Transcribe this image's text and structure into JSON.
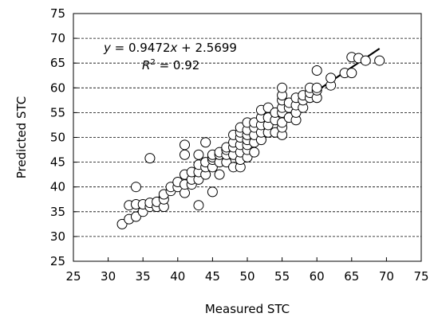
{
  "chart_data": {
    "type": "scatter",
    "title": "",
    "xlabel": "Measured STC",
    "ylabel": "Predicted STC",
    "xlim": [
      25,
      75
    ],
    "ylim": [
      25,
      75
    ],
    "x_ticks": [
      "25",
      "30",
      "35",
      "40",
      "45",
      "50",
      "55",
      "60",
      "65",
      "70",
      "75"
    ],
    "y_ticks": [
      "25",
      "30",
      "35",
      "40",
      "45",
      "50",
      "55",
      "60",
      "65",
      "70",
      "75"
    ],
    "grid": "horizontal-dashed",
    "legend": "none",
    "series": [
      {
        "marker": "open-circle",
        "points": [
          [
            32,
            32.5
          ],
          [
            33,
            33.5
          ],
          [
            33,
            36.3
          ],
          [
            34,
            34
          ],
          [
            34,
            36.5
          ],
          [
            34,
            40
          ],
          [
            35,
            35
          ],
          [
            35,
            36.5
          ],
          [
            36,
            36
          ],
          [
            36,
            36.8
          ],
          [
            36,
            45.8
          ],
          [
            37,
            36
          ],
          [
            37,
            37
          ],
          [
            38,
            36
          ],
          [
            38,
            37.5
          ],
          [
            38,
            38.5
          ],
          [
            39,
            39.2
          ],
          [
            39,
            40
          ],
          [
            40,
            40
          ],
          [
            40,
            41
          ],
          [
            41,
            38.8
          ],
          [
            41,
            40.5
          ],
          [
            41,
            42.5
          ],
          [
            41,
            46.5
          ],
          [
            41,
            48.5
          ],
          [
            42,
            40.5
          ],
          [
            42,
            41.5
          ],
          [
            42,
            43
          ],
          [
            43,
            36.3
          ],
          [
            43,
            41.5
          ],
          [
            43,
            43
          ],
          [
            43,
            44.5
          ],
          [
            43,
            46.5
          ],
          [
            44,
            42.5
          ],
          [
            44,
            44
          ],
          [
            44,
            45
          ],
          [
            44,
            49
          ],
          [
            45,
            39
          ],
          [
            45,
            44
          ],
          [
            45,
            45.5
          ],
          [
            45,
            46
          ],
          [
            45,
            46.5
          ],
          [
            46,
            42.5
          ],
          [
            46,
            45
          ],
          [
            46,
            46.5
          ],
          [
            46,
            47
          ],
          [
            47,
            45
          ],
          [
            47,
            46.5
          ],
          [
            47,
            47.5
          ],
          [
            47,
            48
          ],
          [
            48,
            44
          ],
          [
            48,
            46.5
          ],
          [
            48,
            48
          ],
          [
            48,
            49
          ],
          [
            48,
            50.5
          ],
          [
            49,
            44
          ],
          [
            49,
            45.5
          ],
          [
            49,
            47
          ],
          [
            49,
            48.5
          ],
          [
            49,
            50
          ],
          [
            49,
            51
          ],
          [
            49,
            52
          ],
          [
            50,
            46
          ],
          [
            50,
            47.5
          ],
          [
            50,
            48.5
          ],
          [
            50,
            49.5
          ],
          [
            50,
            50.5
          ],
          [
            50,
            51.5
          ],
          [
            50,
            53
          ],
          [
            51,
            47
          ],
          [
            51,
            49
          ],
          [
            51,
            50.5
          ],
          [
            51,
            52
          ],
          [
            51,
            53
          ],
          [
            52,
            49.5
          ],
          [
            52,
            51
          ],
          [
            52,
            52.5
          ],
          [
            52,
            54
          ],
          [
            52,
            55.5
          ],
          [
            53,
            51
          ],
          [
            53,
            52.5
          ],
          [
            53,
            54
          ],
          [
            53,
            56
          ],
          [
            54,
            51
          ],
          [
            54,
            53.5
          ],
          [
            54,
            55
          ],
          [
            55,
            50.5
          ],
          [
            55,
            52
          ],
          [
            55,
            53
          ],
          [
            55,
            55
          ],
          [
            55,
            56
          ],
          [
            55,
            57.5
          ],
          [
            55,
            58.5
          ],
          [
            55,
            60
          ],
          [
            56,
            54
          ],
          [
            56,
            56
          ],
          [
            56,
            57
          ],
          [
            57,
            53.5
          ],
          [
            57,
            55
          ],
          [
            57,
            56.5
          ],
          [
            57,
            58
          ],
          [
            58,
            56
          ],
          [
            58,
            57.5
          ],
          [
            58,
            58.5
          ],
          [
            59,
            58
          ],
          [
            59,
            59
          ],
          [
            59,
            60
          ],
          [
            60,
            58
          ],
          [
            60,
            59.5
          ],
          [
            60,
            60
          ],
          [
            60,
            63.5
          ],
          [
            62,
            60.5
          ],
          [
            62,
            62
          ],
          [
            64,
            63
          ],
          [
            65,
            63
          ],
          [
            65,
            66.2
          ],
          [
            66,
            66
          ],
          [
            67,
            65.5
          ],
          [
            69,
            65.5
          ]
        ]
      }
    ],
    "fit": {
      "slope": 0.9472,
      "intercept": 2.5699,
      "x_range": [
        32,
        69
      ]
    },
    "equation": {
      "lhs": "y",
      "eq": " = ",
      "coef": "0.9472",
      "var": "x",
      "rest": " + 2.5699"
    },
    "r_squared": {
      "label": "R",
      "sup": "2",
      "rest": " = 0.92"
    }
  }
}
